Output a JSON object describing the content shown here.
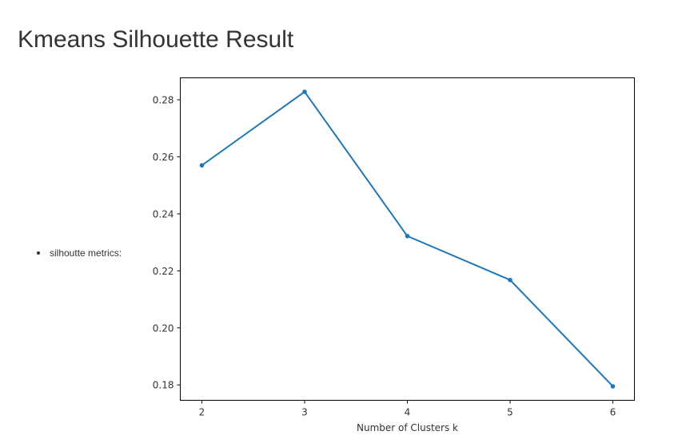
{
  "page": {
    "title": "Kmeans Silhouette Result"
  },
  "metric": {
    "label": "silhoutte metrics:"
  },
  "chart_data": {
    "type": "line",
    "title": "",
    "xlabel": "Number of Clusters k",
    "ylabel": "",
    "x": [
      2,
      3,
      4,
      5,
      6
    ],
    "series": [
      {
        "values": [
          0.257,
          0.2828,
          0.2322,
          0.2168,
          0.1795
        ],
        "color": "#1f77b4"
      }
    ],
    "xlim": [
      1.79,
      6.21
    ],
    "ylim": [
      0.1746,
      0.2877
    ],
    "xticks": [
      2,
      3,
      4,
      5,
      6
    ],
    "xtick_labels": [
      "2",
      "3",
      "4",
      "5",
      "6"
    ],
    "yticks": [
      0.18,
      0.2,
      0.22,
      0.24,
      0.26,
      0.28
    ],
    "ytick_labels": [
      "0.18",
      "0.20",
      "0.22",
      "0.24",
      "0.26",
      "0.28"
    ],
    "grid": false,
    "markers": true
  }
}
